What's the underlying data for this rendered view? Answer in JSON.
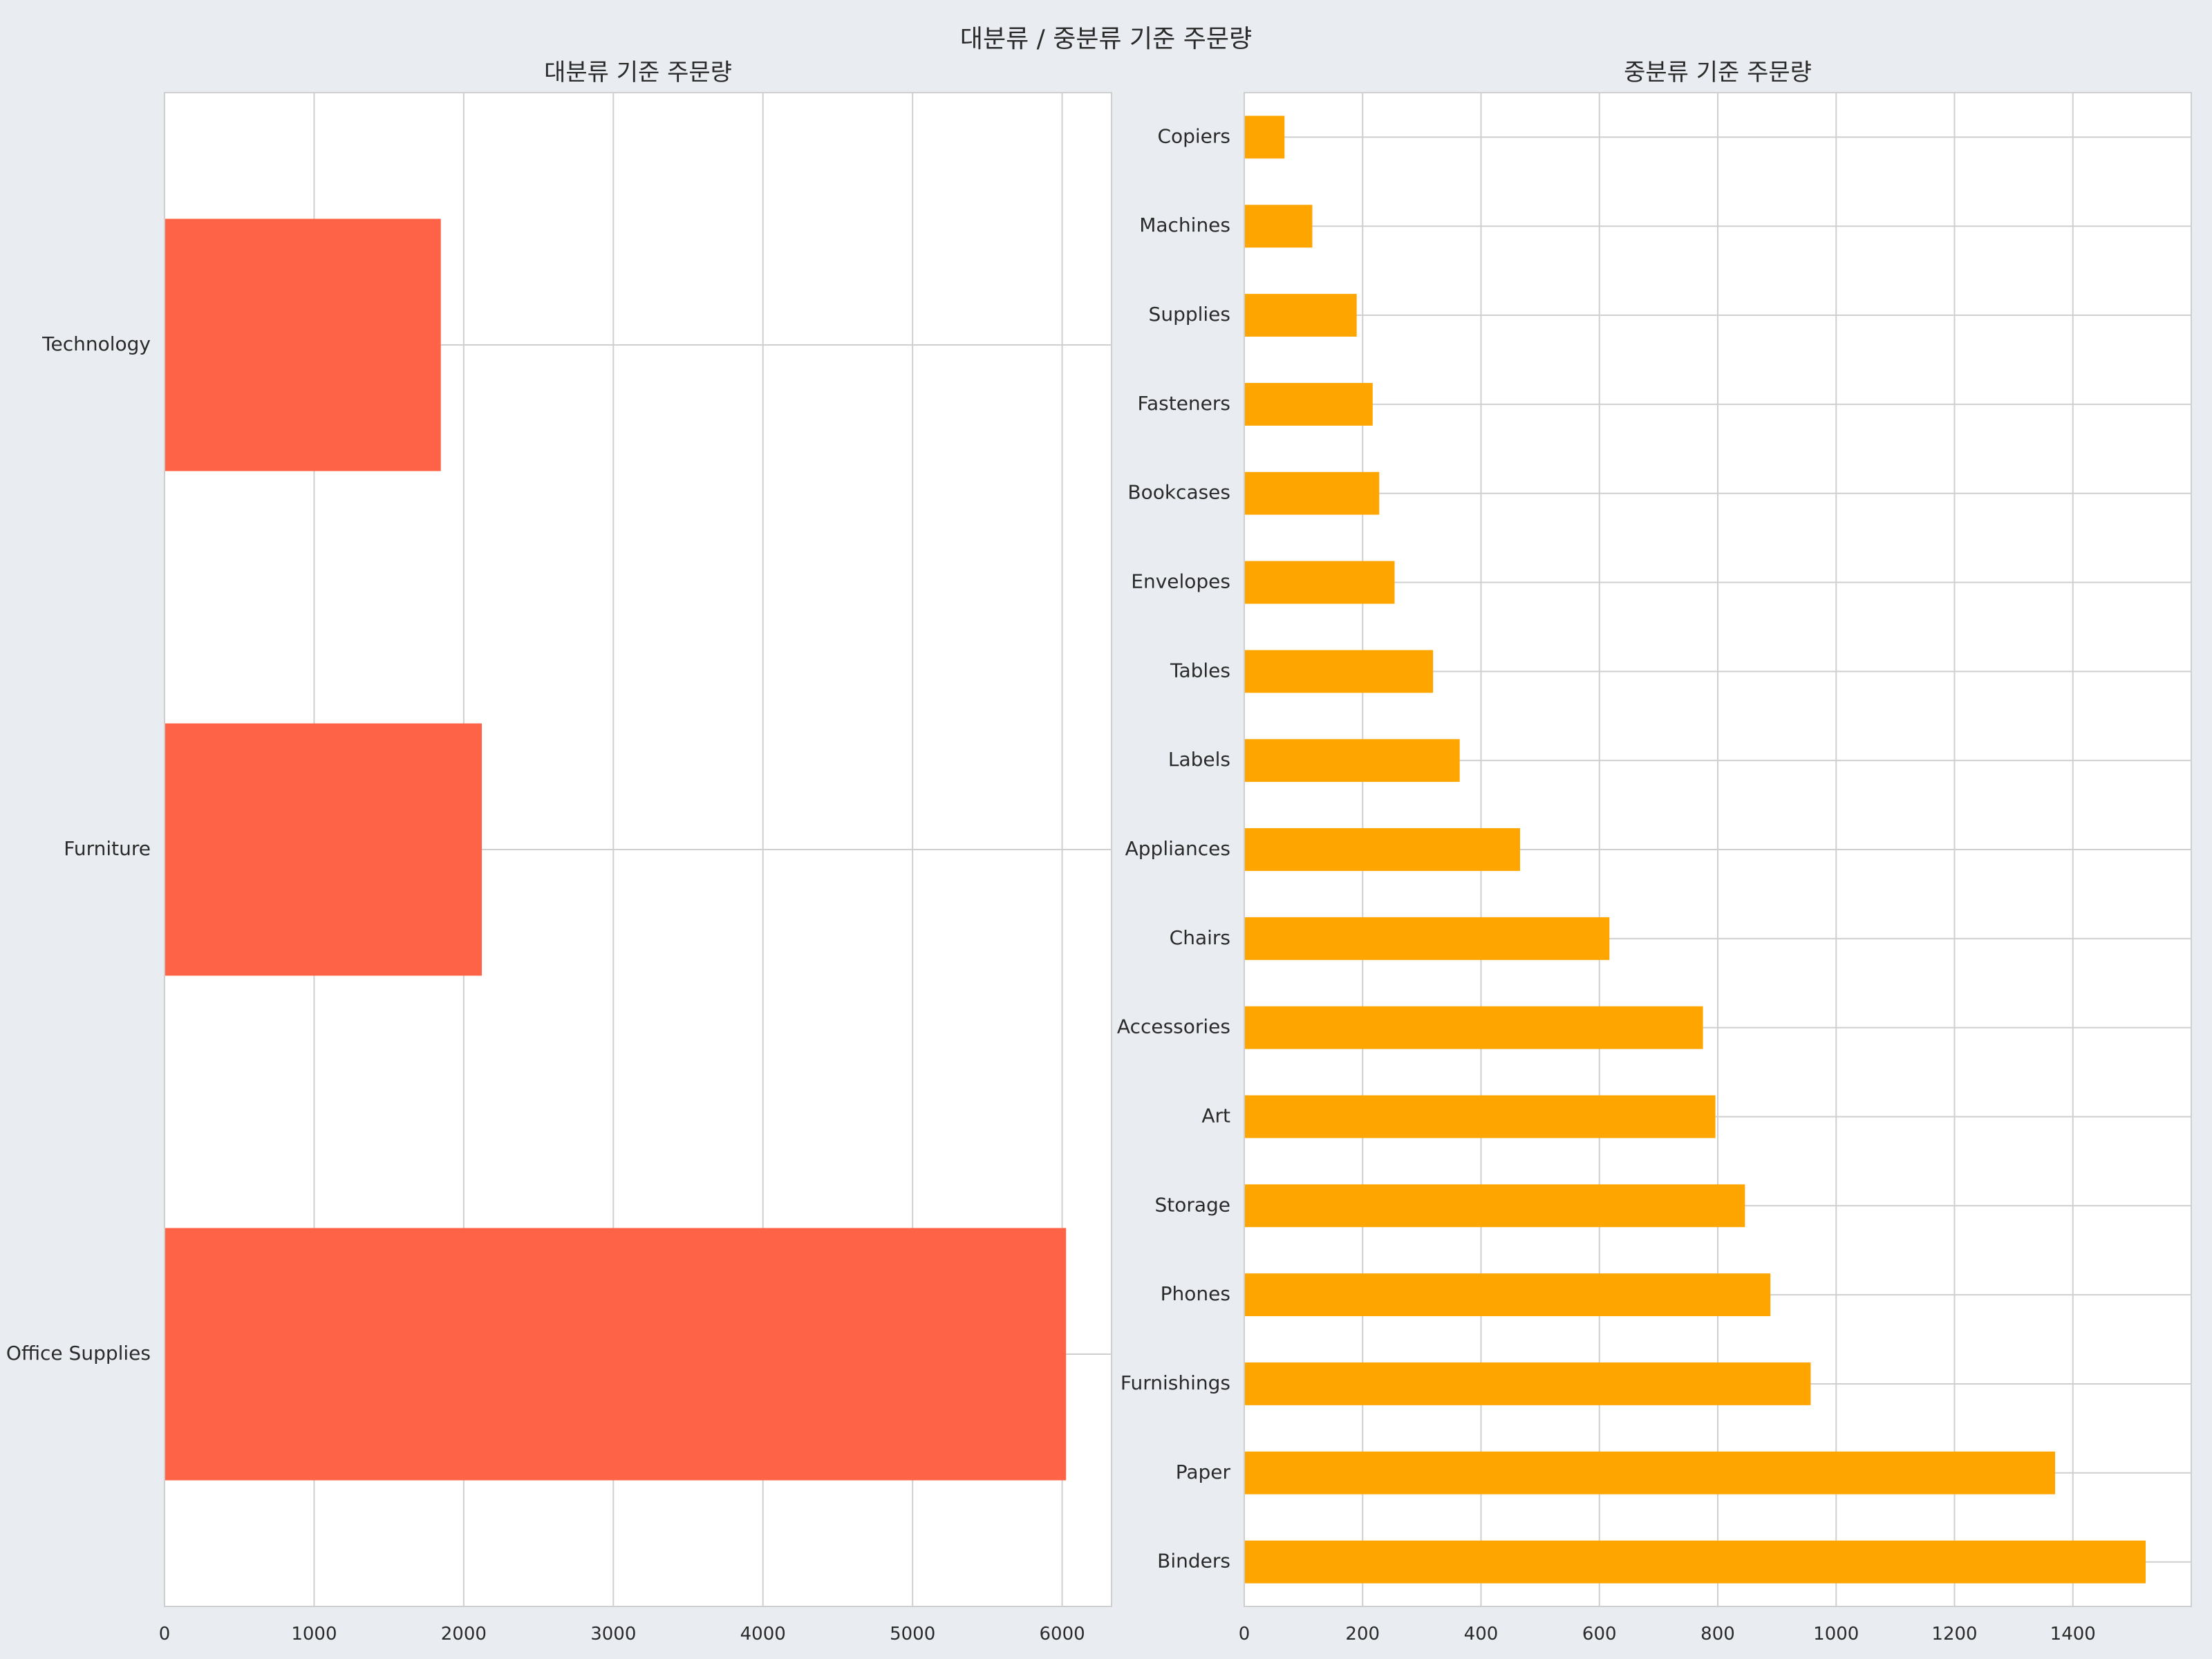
{
  "figure_title": "대분류 / 중분류 기준 주문량",
  "chart_data": [
    {
      "type": "bar",
      "orientation": "horizontal",
      "title": "대분류 기준 주문량",
      "xlabel": "",
      "ylabel": "",
      "categories": [
        "Office Supplies",
        "Furniture",
        "Technology"
      ],
      "values": [
        6026,
        2121,
        1847
      ],
      "xlim": [
        0,
        6330
      ],
      "xticks": [
        0,
        1000,
        2000,
        3000,
        4000,
        5000,
        6000
      ],
      "color": "#ff6347",
      "grid": true
    },
    {
      "type": "bar",
      "orientation": "horizontal",
      "title": "중분류 기준 주문량",
      "xlabel": "",
      "ylabel": "",
      "categories": [
        "Binders",
        "Paper",
        "Furnishings",
        "Phones",
        "Storage",
        "Art",
        "Accessories",
        "Chairs",
        "Appliances",
        "Labels",
        "Tables",
        "Envelopes",
        "Bookcases",
        "Fasteners",
        "Supplies",
        "Machines",
        "Copiers"
      ],
      "values": [
        1523,
        1370,
        957,
        889,
        846,
        796,
        775,
        617,
        466,
        364,
        319,
        254,
        228,
        217,
        190,
        115,
        68
      ],
      "xlim": [
        0,
        1600
      ],
      "xticks": [
        0,
        200,
        400,
        600,
        800,
        1000,
        1200,
        1400
      ],
      "color": "#ffa500",
      "grid": true
    }
  ]
}
